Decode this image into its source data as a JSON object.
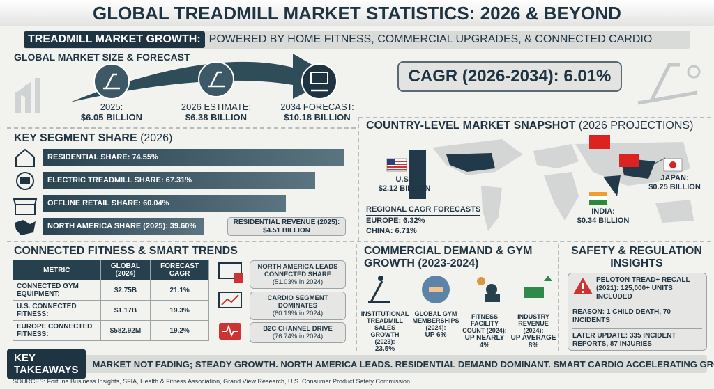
{
  "header": {
    "title": "GLOBAL TREADMILL MARKET STATISTICS: 2026 & BEYOND",
    "banner_label": "TREADMILL MARKET GROWTH:",
    "banner_text": "POWERED BY HOME FITNESS, COMMERCIAL UPGRADES, & CONNECTED CARDIO"
  },
  "market_size": {
    "heading": "GLOBAL MARKET SIZE & FORECAST",
    "points": [
      {
        "label": "2025:",
        "value": "$6.05 BILLION"
      },
      {
        "label": "2026 ESTIMATE:",
        "value": "$6.38 BILLION"
      },
      {
        "label": "2034 FORECAST:",
        "value": "$10.18 BILLION"
      }
    ],
    "cagr": "CAGR (2026-2034): 6.01%"
  },
  "segments": {
    "heading": "KEY SEGMENT SHARE",
    "heading_note": "(2026)",
    "bars": [
      {
        "label": "RESIDENTIAL SHARE: 74.55%",
        "value": 74.55
      },
      {
        "label": "ELECTRIC TREADMILL SHARE: 67.31%",
        "value": 67.31
      },
      {
        "label": "OFFLINE RETAIL SHARE: 60.04%",
        "value": 60.04
      },
      {
        "label": "NORTH AMERICA SHARE (2025): 39.60%",
        "value": 39.6
      }
    ],
    "revenue_label": "RESIDENTIAL REVENUE (2025):",
    "revenue_value": "$4.51 BILLION"
  },
  "countries": {
    "heading": "COUNTRY-LEVEL MARKET SNAPSHOT",
    "heading_note": "(2026 PROJECTIONS)",
    "items": [
      {
        "label": "U.S.:",
        "value": "$2.12 BILLION"
      },
      {
        "label": "JAPAN:",
        "value": "$0.25 BILLION"
      },
      {
        "label": "INDIA:",
        "value": "$0.34 BILLION"
      }
    ],
    "regional_heading": "REGIONAL CAGR FORECASTS",
    "regional": [
      "EUROPE: 6.32%",
      "CHINA: 6.71%"
    ]
  },
  "connected": {
    "heading": "CONNECTED FITNESS & SMART TRENDS",
    "table": {
      "header": [
        "METRIC",
        "GLOBAL (2024)",
        "FORECAST CAGR"
      ],
      "rows": [
        [
          "CONNECTED GYM EQUIPMENT:",
          "$2.75B",
          "21.1%"
        ],
        [
          "U.S. CONNECTED FITNESS:",
          "$1.17B",
          "19.3%"
        ],
        [
          "EUROPE CONNECTED FITNESS:",
          "$582.92M",
          "19.2%"
        ]
      ]
    },
    "callouts": [
      {
        "title": "NORTH AMERICA LEADS CONNECTED SHARE",
        "note": "(51.03% in 2024)"
      },
      {
        "title": "CARDIO SEGMENT DOMINATES",
        "note": "(60.19% in 2024)"
      },
      {
        "title": "B2C CHANNEL DRIVE",
        "note": "(76.74% in 2024)"
      }
    ]
  },
  "commercial": {
    "heading": "COMMERCIAL DEMAND & GYM GROWTH (2023-2024)",
    "items": [
      {
        "label": "INSTITUTIONAL TREADMILL SALES GROWTH (2023):",
        "value": "23.5%"
      },
      {
        "label": "GLOBAL GYM MEMBERSHIPS (2024):",
        "value": "UP 6%"
      },
      {
        "label": "FITNESS FACILITY COUNT (2024):",
        "value": "UP NEARLY 4%"
      },
      {
        "label": "INDUSTRY REVENUE (2024):",
        "value": "UP AVERAGE 8%"
      }
    ]
  },
  "safety": {
    "heading": "SAFETY & REGULATION INSIGHTS",
    "recall": "PELOTON TREAD+ RECALL (2021): 125,000+ UNITS INCLUDED",
    "reason": "REASON: 1 CHILD DEATH, 70 INCIDENTS",
    "update": "LATER UPDATE: 335 INCIDENT REPORTS, 87 INJURIES"
  },
  "takeaways": {
    "label": "KEY TAKEAWAYS",
    "text": "MARKET NOT FADING; STEADY GROWTH. NORTH AMERICA LEADS. RESIDENTIAL DEMAND DOMINANT. SMART CARDIO ACCELERATING GROWTH."
  },
  "sources": "SOURCES: Fortune Business Insights, SFIA, Health & Fitness Association, Grand View Research, U.S. Consumer Product Safety Commission"
}
